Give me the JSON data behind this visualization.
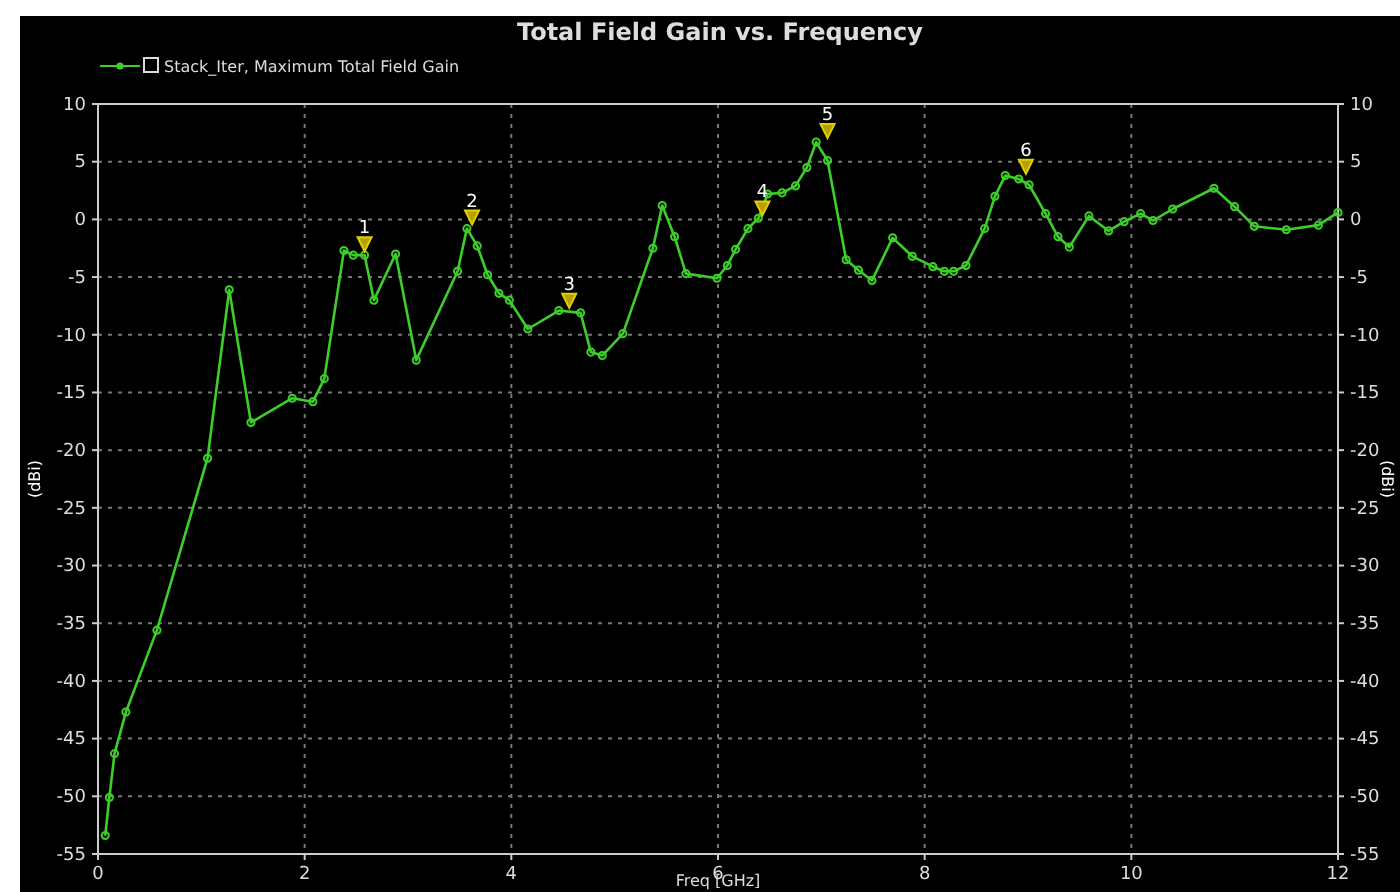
{
  "chart_data": {
    "type": "line",
    "title": "Total Field Gain vs. Frequency",
    "xlabel": "Freq [GHz]",
    "ylabel": "(dBi)",
    "y2label": "(dBi)",
    "xlim": [
      0,
      12
    ],
    "xticks": [
      0,
      2,
      4,
      6,
      8,
      10,
      12
    ],
    "ylim": [
      -55,
      10
    ],
    "yticks": [
      -55,
      -50,
      -45,
      -40,
      -35,
      -30,
      -25,
      -20,
      -15,
      -10,
      -5,
      0,
      5,
      10
    ],
    "y2lim": [
      -55,
      10
    ],
    "y2ticks": [
      -55,
      -50,
      -45,
      -40,
      -35,
      -30,
      -25,
      -20,
      -15,
      -10,
      -5,
      0,
      5,
      10
    ],
    "grid": true,
    "legend": "top left",
    "marker": "circle",
    "line_style": "solid",
    "series": [
      {
        "name": "Stack_Iter, Maximum Total Field Gain",
        "color": "#3ccf2a",
        "x": [
          0.07,
          0.11,
          0.16,
          0.27,
          0.57,
          1.06,
          1.27,
          1.48,
          1.88,
          2.08,
          2.19,
          2.38,
          2.47,
          2.58,
          2.67,
          2.88,
          3.08,
          3.48,
          3.57,
          3.67,
          3.77,
          3.88,
          3.98,
          4.16,
          4.46,
          4.67,
          4.77,
          4.88,
          5.08,
          5.37,
          5.46,
          5.58,
          5.69,
          5.99,
          6.09,
          6.17,
          6.29,
          6.39,
          6.48,
          6.62,
          6.75,
          6.86,
          6.95,
          7.06,
          7.24,
          7.36,
          7.49,
          7.69,
          7.88,
          8.08,
          8.19,
          8.28,
          8.4,
          8.58,
          8.68,
          8.78,
          8.91,
          9.01,
          9.17,
          9.29,
          9.4,
          9.59,
          9.78,
          9.93,
          10.09,
          10.21,
          10.4,
          10.8,
          11.0,
          11.19,
          11.5,
          11.81,
          12.0
        ],
        "values": [
          -53.4,
          -50.1,
          -46.3,
          -42.7,
          -35.6,
          -20.7,
          -6.1,
          -17.6,
          -15.5,
          -15.8,
          -13.8,
          -2.7,
          -3.1,
          -3.1,
          -7.0,
          -3.0,
          -12.2,
          -4.5,
          -0.8,
          -2.3,
          -4.8,
          -6.4,
          -7.0,
          -9.5,
          -7.9,
          -8.1,
          -11.5,
          -11.8,
          -9.9,
          -2.5,
          1.2,
          -1.5,
          -4.7,
          -5.1,
          -4.0,
          -2.6,
          -0.8,
          0.1,
          2.2,
          2.3,
          2.9,
          4.5,
          6.7,
          5.1,
          -3.5,
          -4.4,
          -5.3,
          -1.6,
          -3.2,
          -4.1,
          -4.5,
          -4.5,
          -4.0,
          -0.8,
          2.0,
          3.8,
          3.5,
          3.0,
          0.5,
          -1.5,
          -2.4,
          0.3,
          -1.0,
          -0.2,
          0.5,
          -0.1,
          0.9,
          2.7,
          1.1,
          -0.6,
          -0.9,
          -0.5,
          0.6
        ]
      }
    ],
    "annotations": [
      {
        "text": "1",
        "x": 2.58,
        "y": -3.1
      },
      {
        "text": "2",
        "x": 3.62,
        "y": -0.8
      },
      {
        "text": "3",
        "x": 4.56,
        "y": -8.0
      },
      {
        "text": "4",
        "x": 6.43,
        "y": 0.0
      },
      {
        "text": "5",
        "x": 7.06,
        "y": 6.7
      },
      {
        "text": "6",
        "x": 8.98,
        "y": 3.6
      }
    ]
  }
}
